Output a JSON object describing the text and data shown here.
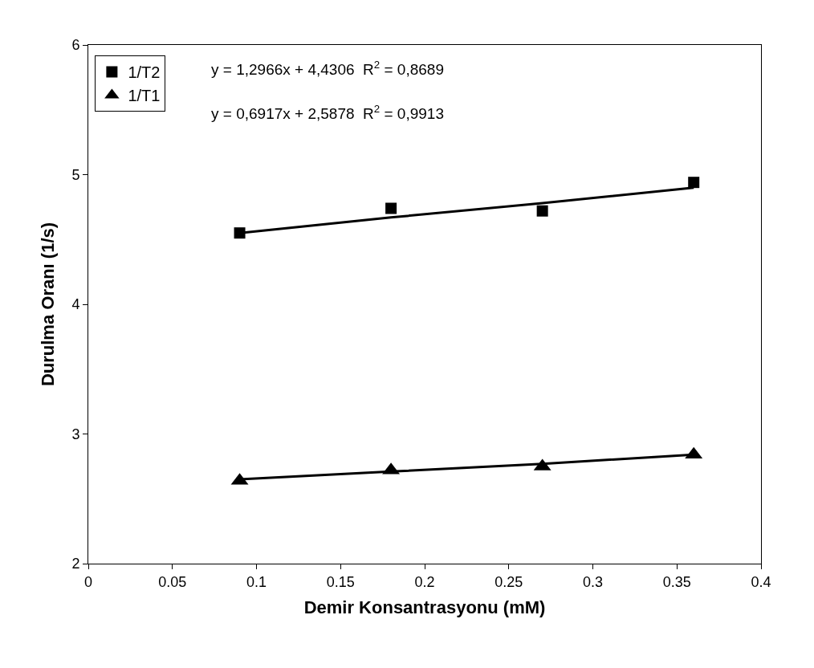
{
  "chart_data": {
    "type": "scatter",
    "xlabel": "Demir Konsantrasyonu (mM)",
    "ylabel": "Durulma Oranı (1/s)",
    "x": [
      0.09,
      0.18,
      0.27,
      0.36
    ],
    "series": [
      {
        "name": "1/T2",
        "color": "#000000",
        "marker": "square",
        "values": [
          4.55,
          4.74,
          4.72,
          4.94
        ]
      },
      {
        "name": "1/T1",
        "color": "#000000",
        "marker": "triangle",
        "values": [
          2.64,
          2.72,
          2.75,
          2.84
        ]
      },
      {
        "type": "line",
        "color": "#000000",
        "values": [
          4.55,
          4.67,
          4.78,
          4.9
        ]
      },
      {
        "type": "line",
        "color": "#000000",
        "values": [
          2.65,
          2.71,
          2.77,
          2.84
        ]
      }
    ],
    "xlim": [
      0,
      0.4
    ],
    "xticks": [
      0,
      0.05,
      0.1,
      0.15,
      0.2,
      0.25,
      0.3,
      0.35,
      0.4
    ],
    "ylim": [
      2,
      6
    ],
    "yticks": [
      2,
      3,
      4,
      5,
      6
    ],
    "annotations": [
      "y = 1,2966x + 4,4306  R$^{2}$ = 0,8689",
      "y = 0,6917x + 2,5878  R$^{2}$ = 0,9913"
    ],
    "legend": "top left"
  }
}
